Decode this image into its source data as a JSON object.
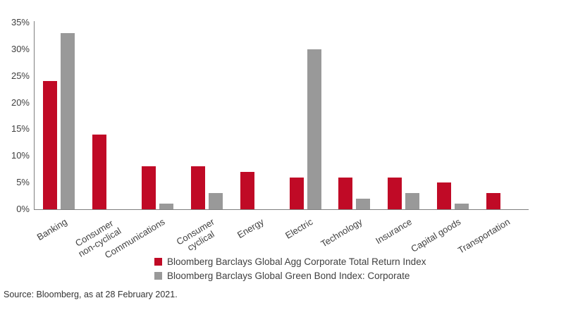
{
  "chart_data": {
    "type": "bar",
    "title": "",
    "xlabel": "",
    "ylabel": "",
    "categories": [
      "Banking",
      "Consumer\nnon-cyclical",
      "Communications",
      "Consumer\ncyclical",
      "Energy",
      "Electric",
      "Technology",
      "Insurance",
      "Capital goods",
      "Transportation"
    ],
    "series": [
      {
        "name": "Bloomberg Barclays Global Agg Corporate Total Return Index",
        "color": "#c00a26",
        "values": [
          24,
          14,
          8,
          8,
          7,
          6,
          6,
          6,
          5,
          3
        ]
      },
      {
        "name": "Bloomberg Barclays Global Green Bond Index: Corporate",
        "color": "#999999",
        "values": [
          33,
          0,
          1,
          3,
          0,
          30,
          2,
          3,
          1,
          0
        ]
      }
    ],
    "ylim": [
      0,
      35
    ],
    "ytick_step": 5,
    "ytick_labels": [
      "0%",
      "5%",
      "10%",
      "15%",
      "20%",
      "25%",
      "30%",
      "35%"
    ],
    "grid": false,
    "legend_position": "bottom-center"
  },
  "colors": {
    "axis_line": "#7f7f7f",
    "tick_text": "#3f3f3f",
    "source_text": "#333333"
  },
  "footer": {
    "source": "Source: Bloomberg, as at 28 February 2021."
  }
}
